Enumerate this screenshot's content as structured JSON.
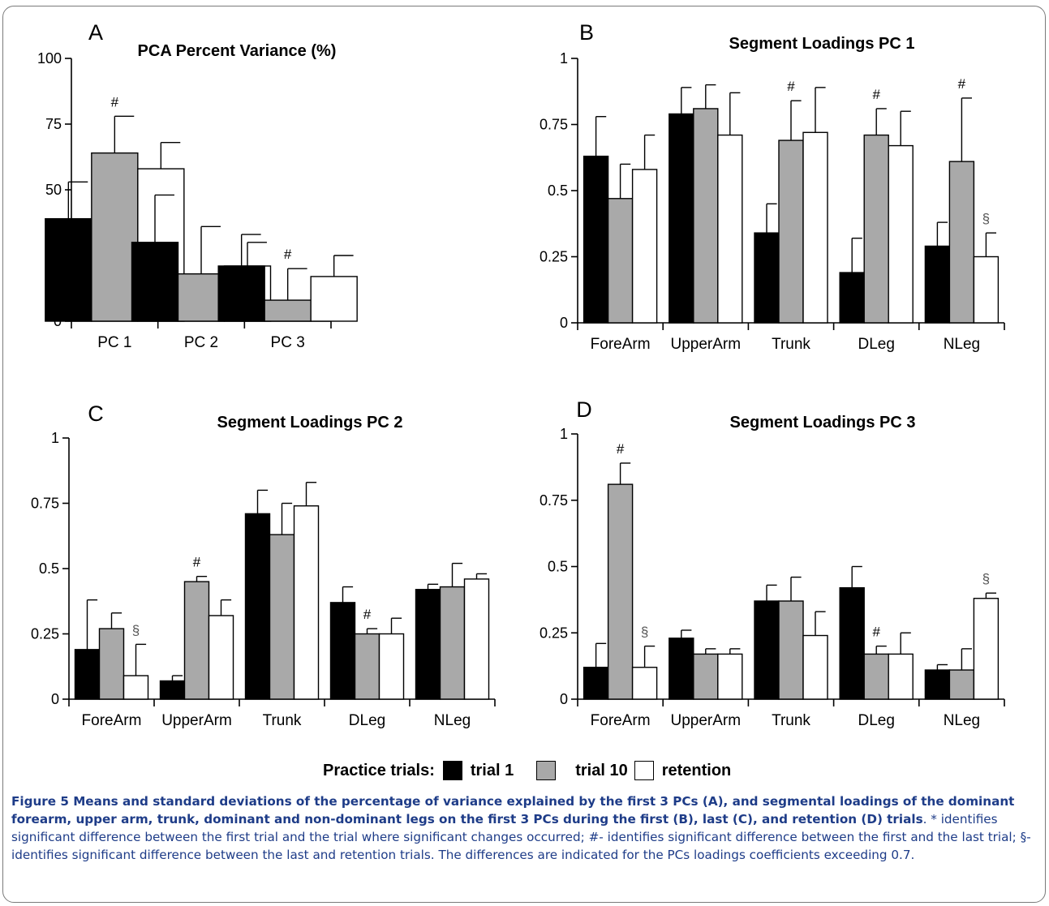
{
  "colors": {
    "trial_1": "#000000",
    "trial_10": "#a9a9a9",
    "retention": "#ffffff",
    "caption": "#1e3c88"
  },
  "legend": {
    "title": "Practice trials:",
    "items": [
      {
        "label": "trial 1",
        "color": "#000000"
      },
      {
        "label": "trial 10",
        "color": "#a9a9a9"
      },
      {
        "label": "retention",
        "color": "#ffffff"
      }
    ]
  },
  "caption": {
    "bold": "Figure 5 Means and standard deviations of the percentage of variance explained by the first 3 PCs (A), and segmental loadings of the dominant forearm, upper arm, trunk, dominant and non-dominant legs on the first 3 PCs during the first (B), last (C), and retention (D) trials",
    "rest": ". * identifies significant difference between the first trial and the trial where significant changes occurred; #- identifies significant difference between the first and the last trial; §-identifies significant difference between the last and retention trials. The differences are indicated for the PCs loadings coefficients exceeding 0.7."
  },
  "chart_data": [
    {
      "panel": "A",
      "type": "bar",
      "title": "PCA Percent Variance (%)",
      "categories": [
        "PC 1",
        "PC 2",
        "PC 3"
      ],
      "ylim": [
        0,
        100
      ],
      "yticks": [
        0,
        25,
        50,
        75,
        100
      ],
      "ytick_labels": [
        "0",
        "25",
        "50",
        "75",
        "100"
      ],
      "series": [
        {
          "name": "trial 1",
          "values": [
            39,
            30,
            21
          ],
          "errors": [
            14,
            18,
            12
          ],
          "marks": [
            "",
            "",
            ""
          ]
        },
        {
          "name": "trial 10",
          "values": [
            64,
            18,
            8
          ],
          "errors": [
            14,
            18,
            12
          ],
          "marks": [
            "#",
            "",
            "#"
          ]
        },
        {
          "name": "retention",
          "values": [
            58,
            21,
            17
          ],
          "errors": [
            10,
            9,
            8
          ],
          "marks": [
            "",
            "",
            ""
          ]
        }
      ]
    },
    {
      "panel": "B",
      "type": "bar",
      "title": "Segment Loadings PC 1",
      "categories": [
        "ForeArm",
        "UpperArm",
        "Trunk",
        "DLeg",
        "NLeg"
      ],
      "ylim": [
        0,
        1
      ],
      "yticks": [
        0,
        0.25,
        0.5,
        0.75,
        1
      ],
      "ytick_labels": [
        "0",
        "0.25",
        "0.5",
        "0.75",
        "1"
      ],
      "series": [
        {
          "name": "trial 1",
          "values": [
            0.63,
            0.79,
            0.34,
            0.19,
            0.29
          ],
          "errors": [
            0.15,
            0.1,
            0.11,
            0.13,
            0.09
          ],
          "marks": [
            "",
            "",
            "",
            "",
            ""
          ]
        },
        {
          "name": "trial 10",
          "values": [
            0.47,
            0.81,
            0.69,
            0.71,
            0.61
          ],
          "errors": [
            0.13,
            0.09,
            0.15,
            0.1,
            0.24
          ],
          "marks": [
            "",
            "",
            "#",
            "#",
            "#"
          ]
        },
        {
          "name": "retention",
          "values": [
            0.58,
            0.71,
            0.72,
            0.67,
            0.25
          ],
          "errors": [
            0.13,
            0.16,
            0.17,
            0.13,
            0.09
          ],
          "marks": [
            "",
            "",
            "",
            "",
            "§"
          ]
        }
      ]
    },
    {
      "panel": "C",
      "type": "bar",
      "title": "Segment Loadings PC 2",
      "categories": [
        "ForeArm",
        "UpperArm",
        "Trunk",
        "DLeg",
        "NLeg"
      ],
      "ylim": [
        0,
        1
      ],
      "yticks": [
        0,
        0.25,
        0.5,
        0.75,
        1
      ],
      "ytick_labels": [
        "0",
        "0.25",
        "0.5",
        "0.75",
        "1"
      ],
      "series": [
        {
          "name": "trial 1",
          "values": [
            0.19,
            0.07,
            0.71,
            0.37,
            0.42
          ],
          "errors": [
            0.19,
            0.02,
            0.09,
            0.06,
            0.02
          ],
          "marks": [
            "",
            "",
            "",
            "",
            ""
          ]
        },
        {
          "name": "trial 10",
          "values": [
            0.27,
            0.45,
            0.63,
            0.25,
            0.43
          ],
          "errors": [
            0.06,
            0.02,
            0.12,
            0.02,
            0.09
          ],
          "marks": [
            "",
            "#",
            "",
            "#",
            ""
          ]
        },
        {
          "name": "retention",
          "values": [
            0.09,
            0.32,
            0.74,
            0.25,
            0.46
          ],
          "errors": [
            0.12,
            0.06,
            0.09,
            0.06,
            0.02
          ],
          "marks": [
            "§",
            "",
            "",
            "",
            ""
          ]
        }
      ]
    },
    {
      "panel": "D",
      "type": "bar",
      "title": "Segment Loadings PC 3",
      "categories": [
        "ForeArm",
        "UpperArm",
        "Trunk",
        "DLeg",
        "NLeg"
      ],
      "ylim": [
        0,
        1
      ],
      "yticks": [
        0,
        0.25,
        0.5,
        0.75,
        1
      ],
      "ytick_labels": [
        "0",
        "0.25",
        "0.5",
        "0.75",
        "1"
      ],
      "series": [
        {
          "name": "trial 1",
          "values": [
            0.12,
            0.23,
            0.37,
            0.42,
            0.11
          ],
          "errors": [
            0.09,
            0.03,
            0.06,
            0.08,
            0.02
          ],
          "marks": [
            "",
            "",
            "",
            "",
            ""
          ]
        },
        {
          "name": "trial 10",
          "values": [
            0.81,
            0.17,
            0.37,
            0.17,
            0.11
          ],
          "errors": [
            0.08,
            0.02,
            0.09,
            0.03,
            0.08
          ],
          "marks": [
            "#",
            "",
            "",
            "#",
            ""
          ]
        },
        {
          "name": "retention",
          "values": [
            0.12,
            0.17,
            0.24,
            0.17,
            0.38
          ],
          "errors": [
            0.08,
            0.02,
            0.09,
            0.08,
            0.02
          ],
          "marks": [
            "§",
            "",
            "",
            "",
            "§"
          ]
        }
      ]
    }
  ]
}
